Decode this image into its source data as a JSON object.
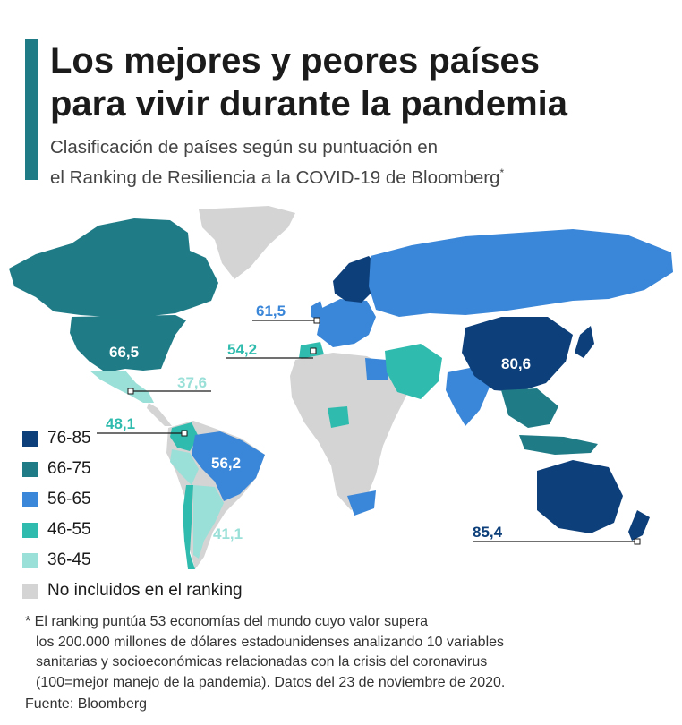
{
  "title_line1": "Los mejores y peores países",
  "title_line2": "para vivir durante la pandemia",
  "subtitle_line1": "Clasificación de países según su puntuación en",
  "subtitle_line2": "el Ranking de Resiliencia a la COVID-19 de Bloomberg",
  "subtitle_asterisk": "*",
  "legend": [
    {
      "label": "76-85",
      "color": "#0d3f7a"
    },
    {
      "label": "66-75",
      "color": "#1f7c87"
    },
    {
      "label": "56-65",
      "color": "#3a86d8"
    },
    {
      "label": "46-55",
      "color": "#2fbcae"
    },
    {
      "label": "36-45",
      "color": "#9ae0d8"
    },
    {
      "label": "No incluidos en el ranking",
      "color": "#d4d4d4"
    }
  ],
  "callouts": {
    "usa": {
      "value": "66,5",
      "color": "#ffffff"
    },
    "uk": {
      "value": "61,5",
      "color": "#3a86d8"
    },
    "spain": {
      "value": "54,2",
      "color": "#2fbcae"
    },
    "mexico": {
      "value": "37,6",
      "color": "#9ae0d8"
    },
    "colombia": {
      "value": "48,1",
      "color": "#2fbcae"
    },
    "brazil": {
      "value": "56,2",
      "color": "#ffffff"
    },
    "argentina": {
      "value": "41,1",
      "color": "#9ae0d8"
    },
    "china": {
      "value": "80,6",
      "color": "#ffffff"
    },
    "new_zealand": {
      "value": "85,4",
      "color": "#0d3f7a"
    }
  },
  "footnote": {
    "line1": "* El ranking puntúa 53 economías del mundo cuyo valor supera",
    "line2": "los 200.000 millones de dólares estadounidenses analizando 10 variables",
    "line3": "sanitarias y socioeconómicas relacionadas con la crisis del coronavirus",
    "line4": "(100=mejor manejo de la pandemia). Datos del 23 de noviembre de 2020."
  },
  "source": "Fuente: Bloomberg"
}
